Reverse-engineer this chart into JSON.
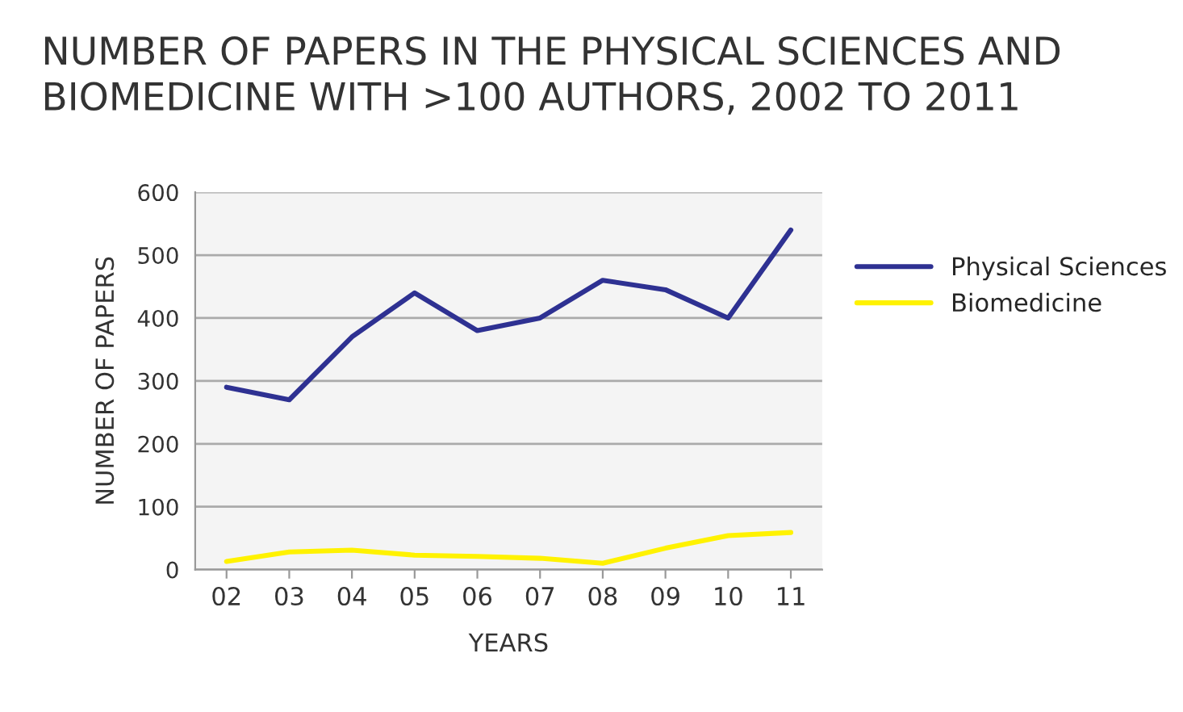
{
  "chart_data": {
    "type": "line",
    "title": "NUMBER OF PAPERS IN THE PHYSICAL SCIENCES AND\nBIOMEDICINE WITH >100 AUTHORS, 2002 TO 2011",
    "xlabel": "YEARS",
    "ylabel": "NUMBER OF PAPERS",
    "categories": [
      "02",
      "03",
      "04",
      "05",
      "06",
      "07",
      "08",
      "09",
      "10",
      "11"
    ],
    "series": [
      {
        "name": "Physical Sciences",
        "color": "#2e3192",
        "values": [
          290,
          270,
          370,
          440,
          380,
          400,
          460,
          445,
          400,
          540
        ]
      },
      {
        "name": "Biomedicine",
        "color": "#fff200",
        "values": [
          13,
          28,
          31,
          23,
          21,
          18,
          10,
          34,
          54,
          59
        ]
      }
    ],
    "ylim": [
      0,
      600
    ],
    "yticks": [
      0,
      100,
      200,
      300,
      400,
      500,
      600
    ],
    "grid": "y",
    "legend": "right",
    "marker": "none",
    "line_style": "solid"
  }
}
